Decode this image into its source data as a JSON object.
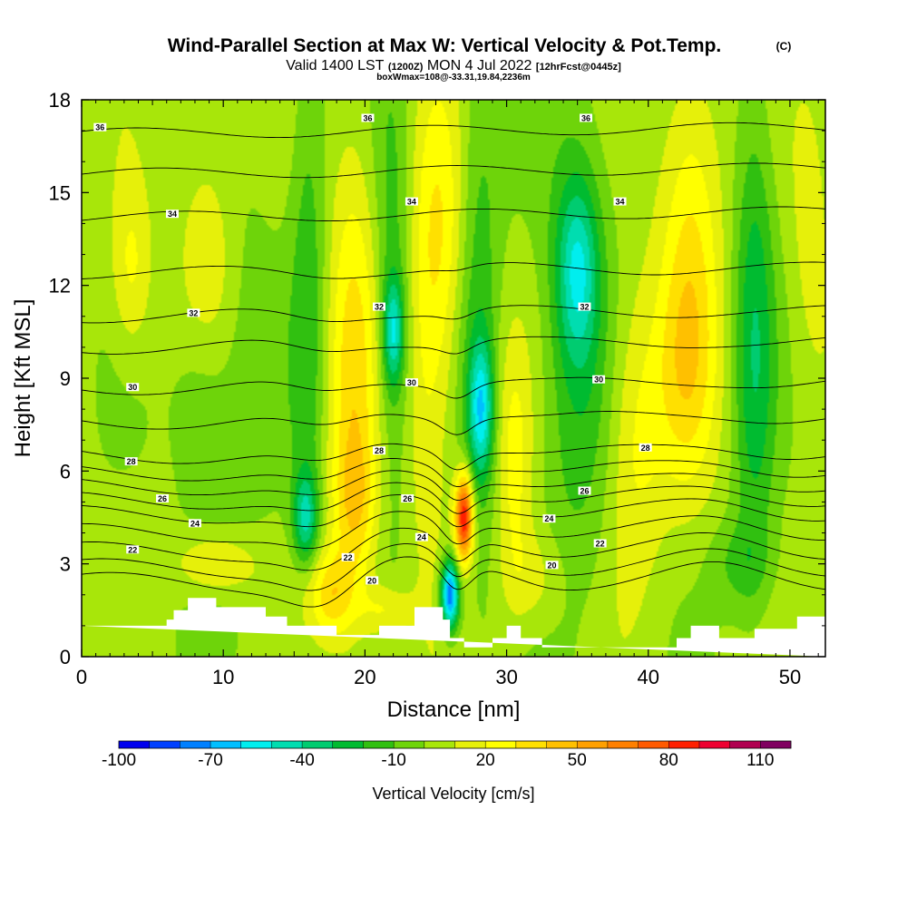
{
  "title": {
    "main": "Wind-Parallel Section at Max W: Vertical Velocity & Pot.Temp.",
    "copyright": "(C)",
    "valid_prefix": "Valid 1400 LST",
    "valid_utc": "(1200Z)",
    "valid_date": "MON 4 Jul 2022",
    "forecast": "[12hrFcst@0445z]",
    "box_info": "boxWmax=108@-33.31,19.84,2236m"
  },
  "colors": {
    "background_field": "#9ee00a",
    "terrain": "#ffffff",
    "isentrope": "#000000",
    "scale": [
      "#0000ee",
      "#0040ff",
      "#0080ff",
      "#00bfff",
      "#00eeee",
      "#00ddb0",
      "#00cc70",
      "#00bb30",
      "#30c010",
      "#6ed40a",
      "#a8e60a",
      "#e6f00a",
      "#ffff00",
      "#ffe000",
      "#ffc000",
      "#ffa000",
      "#ff8000",
      "#ff5a00",
      "#ff2000",
      "#ee0030",
      "#b00050",
      "#800060"
    ]
  },
  "chart_data": {
    "type": "heatmap",
    "title": "Wind-Parallel Section at Max W: Vertical Velocity & Pot.Temp.",
    "xlabel": "Distance [nm]",
    "ylabel": "Height [Kft MSL]",
    "xlim": [
      0,
      52.5
    ],
    "ylim": [
      0,
      18
    ],
    "xticks": [
      0,
      10,
      20,
      30,
      40,
      50
    ],
    "yticks": [
      0,
      3,
      6,
      9,
      12,
      15,
      18
    ],
    "colorbar": {
      "label": "Vertical Velocity [cm/s]",
      "min": -100,
      "max": 120,
      "step": 10,
      "tick_labels": [
        "-100",
        "-70",
        "-40",
        "-10",
        "20",
        "50",
        "80",
        "110"
      ]
    },
    "velocity_features": [
      {
        "x": 16.0,
        "y": 11.5,
        "w": -20,
        "sx": 0.9,
        "sy": 6.0
      },
      {
        "x": 15.8,
        "y": 4.5,
        "w": -40,
        "sx": 0.6,
        "sy": 1.0
      },
      {
        "x": 19.2,
        "y": 9.0,
        "w": 30,
        "sx": 1.3,
        "sy": 5.5
      },
      {
        "x": 19.3,
        "y": 5.0,
        "w": 20,
        "sx": 1.0,
        "sy": 1.5
      },
      {
        "x": 22.0,
        "y": 10.5,
        "w": -45,
        "sx": 0.5,
        "sy": 1.2
      },
      {
        "x": 22.0,
        "y": 12.0,
        "w": -20,
        "sx": 1.0,
        "sy": 5.5
      },
      {
        "x": 25.2,
        "y": 13.5,
        "w": 25,
        "sx": 1.4,
        "sy": 3.5
      },
      {
        "x": 24.3,
        "y": 8.0,
        "w": 15,
        "sx": 1.2,
        "sy": 4.0
      },
      {
        "x": 26.0,
        "y": 2.0,
        "w": -85,
        "sx": 0.45,
        "sy": 0.8
      },
      {
        "x": 27.0,
        "y": 4.5,
        "w": 90,
        "sx": 0.45,
        "sy": 1.0
      },
      {
        "x": 28.2,
        "y": 8.0,
        "w": -50,
        "sx": 0.6,
        "sy": 1.5
      },
      {
        "x": 28.0,
        "y": 11.5,
        "w": -20,
        "sx": 1.1,
        "sy": 6.0
      },
      {
        "x": 30.5,
        "y": 6.0,
        "w": 20,
        "sx": 0.9,
        "sy": 3.0
      },
      {
        "x": 35.0,
        "y": 12.5,
        "w": -40,
        "sx": 1.0,
        "sy": 2.0
      },
      {
        "x": 35.0,
        "y": 10.0,
        "w": -20,
        "sx": 1.8,
        "sy": 6.0
      },
      {
        "x": 39.0,
        "y": 7.0,
        "w": 20,
        "sx": 1.5,
        "sy": 3.5
      },
      {
        "x": 43.0,
        "y": 13.0,
        "w": 28,
        "sx": 1.5,
        "sy": 4.5
      },
      {
        "x": 42.5,
        "y": 9.0,
        "w": 15,
        "sx": 1.5,
        "sy": 2.5
      },
      {
        "x": 47.5,
        "y": 10.5,
        "w": -30,
        "sx": 1.0,
        "sy": 5.5
      },
      {
        "x": 51.5,
        "y": 14.0,
        "w": 12,
        "sx": 1.0,
        "sy": 3.5
      },
      {
        "x": 3.5,
        "y": 12.5,
        "w": 20,
        "sx": 1.0,
        "sy": 2.0
      },
      {
        "x": 9.0,
        "y": 12.0,
        "w": 22,
        "sx": 1.5,
        "sy": 3.5
      },
      {
        "x": 8.5,
        "y": 8.5,
        "w": -20,
        "sx": 1.5,
        "sy": 2.5
      },
      {
        "x": 11.0,
        "y": 10.0,
        "w": -10,
        "sx": 2.0,
        "sy": 5.0
      },
      {
        "x": 9.5,
        "y": 3.0,
        "w": 22,
        "sx": 2.0,
        "sy": 0.7
      },
      {
        "x": 17.5,
        "y": 2.0,
        "w": 32,
        "sx": 1.2,
        "sy": 1.0
      },
      {
        "x": 21.5,
        "y": 1.5,
        "w": 20,
        "sx": 1.2,
        "sy": 0.6
      },
      {
        "x": 32.0,
        "y": 2.5,
        "w": 15,
        "sx": 1.5,
        "sy": 1.2
      },
      {
        "x": 46.5,
        "y": 3.0,
        "w": -15,
        "sx": 1.5,
        "sy": 1.0
      }
    ],
    "isentropes": [
      {
        "theta": 20,
        "base": 2.4,
        "labels": [
          [
            20.5,
            2.45
          ],
          [
            33.2,
            2.95
          ]
        ]
      },
      {
        "theta": 21,
        "base": 2.85,
        "labels": []
      },
      {
        "theta": 22,
        "base": 3.4,
        "labels": [
          [
            3.6,
            3.45
          ],
          [
            18.8,
            3.2
          ],
          [
            36.6,
            3.65
          ]
        ]
      },
      {
        "theta": 23,
        "base": 4.0,
        "labels": []
      },
      {
        "theta": 24,
        "base": 4.6,
        "labels": [
          [
            8.0,
            4.3
          ],
          [
            24.0,
            3.85
          ],
          [
            33.0,
            4.45
          ]
        ]
      },
      {
        "theta": 25,
        "base": 5.05,
        "labels": []
      },
      {
        "theta": 26,
        "base": 5.5,
        "labels": [
          [
            5.7,
            5.1
          ],
          [
            23.0,
            5.1
          ],
          [
            35.5,
            5.35
          ]
        ]
      },
      {
        "theta": 27,
        "base": 5.95,
        "labels": []
      },
      {
        "theta": 28,
        "base": 6.5,
        "labels": [
          [
            3.5,
            6.3
          ],
          [
            21.0,
            6.65
          ],
          [
            39.8,
            6.75
          ]
        ]
      },
      {
        "theta": 29,
        "base": 7.6,
        "labels": []
      },
      {
        "theta": 30,
        "base": 8.7,
        "labels": [
          [
            3.6,
            8.7
          ],
          [
            23.3,
            8.85
          ],
          [
            36.5,
            8.95
          ]
        ]
      },
      {
        "theta": 31,
        "base": 10.0,
        "labels": []
      },
      {
        "theta": 32,
        "base": 11.0,
        "labels": [
          [
            7.9,
            11.1
          ],
          [
            21.0,
            11.3
          ],
          [
            35.5,
            11.3
          ]
        ]
      },
      {
        "theta": 33,
        "base": 12.4,
        "labels": []
      },
      {
        "theta": 34,
        "base": 14.2,
        "labels": [
          [
            6.4,
            14.3
          ],
          [
            23.3,
            14.7
          ],
          [
            38.0,
            14.7
          ]
        ]
      },
      {
        "theta": 35,
        "base": 15.6,
        "labels": []
      },
      {
        "theta": 36,
        "base": 16.9,
        "labels": [
          [
            1.3,
            17.1
          ],
          [
            20.2,
            17.4
          ],
          [
            35.6,
            17.4
          ]
        ]
      }
    ],
    "terrain": [
      [
        0,
        1.0
      ],
      [
        4.5,
        1.0
      ],
      [
        4.5,
        1.0
      ],
      [
        6.0,
        1.0
      ],
      [
        6.0,
        1.2
      ],
      [
        6.5,
        1.2
      ],
      [
        6.5,
        1.5
      ],
      [
        7.5,
        1.5
      ],
      [
        7.5,
        1.9
      ],
      [
        9.0,
        1.9
      ],
      [
        9.0,
        1.9
      ],
      [
        9.5,
        1.9
      ],
      [
        9.5,
        1.6
      ],
      [
        13.0,
        1.6
      ],
      [
        13.0,
        1.3
      ],
      [
        14.5,
        1.3
      ],
      [
        14.5,
        1.0
      ],
      [
        18.0,
        1.0
      ],
      [
        18.0,
        0.7
      ],
      [
        21.0,
        0.7
      ],
      [
        21.0,
        1.0
      ],
      [
        23.5,
        1.0
      ],
      [
        23.5,
        1.6
      ],
      [
        25.5,
        1.6
      ],
      [
        25.5,
        1.2
      ],
      [
        26.0,
        1.2
      ],
      [
        26.0,
        0.6
      ],
      [
        27.0,
        0.6
      ],
      [
        27.0,
        0.3
      ],
      [
        29.0,
        0.3
      ],
      [
        29.0,
        0.6
      ],
      [
        30.0,
        0.6
      ],
      [
        30.0,
        1.0
      ],
      [
        31.0,
        1.0
      ],
      [
        31.0,
        0.6
      ],
      [
        32.5,
        0.6
      ],
      [
        32.5,
        0.3
      ],
      [
        42.0,
        0.3
      ],
      [
        42.0,
        0.6
      ],
      [
        43.0,
        0.6
      ],
      [
        43.0,
        1.0
      ],
      [
        45.0,
        1.0
      ],
      [
        45.0,
        0.6
      ],
      [
        47.5,
        0.6
      ],
      [
        47.5,
        0.9
      ],
      [
        50.5,
        0.9
      ],
      [
        50.5,
        1.3
      ],
      [
        52.5,
        1.3
      ],
      [
        52.5,
        0
      ]
    ]
  }
}
